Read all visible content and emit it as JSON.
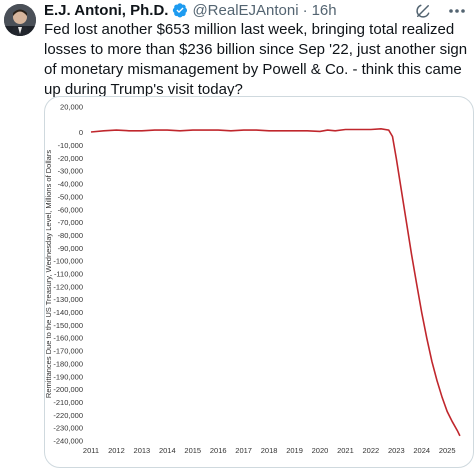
{
  "tweet": {
    "author_name": "E.J. Antoni, Ph.D.",
    "author_handle": "@RealEJAntoni",
    "separator": "·",
    "time": "16h",
    "text": "Fed lost another $653 million last week, bringing total realized losses to more than $236 billion since Sep '22, just another sign of monetary mismanagement by Powell & Co. - think this came up during Trump's visit today?",
    "icons": {
      "verified": "verified-badge-icon",
      "grok": "grok-icon",
      "more": "more-icon"
    },
    "colors": {
      "verified": "#1d9bf0",
      "text": "#0f1419",
      "muted": "#536471"
    }
  },
  "chart_data": {
    "type": "line",
    "title": "",
    "xlabel": "",
    "ylabel": "Remittances Due to the US Treasury, Wednesday Level, Millions of Dollars",
    "x_tick_labels": [
      "2011",
      "2012",
      "2013",
      "2014",
      "2015",
      "2016",
      "2017",
      "2018",
      "2019",
      "2020",
      "2021",
      "2022",
      "2023",
      "2024",
      "2025"
    ],
    "y_tick_labels": [
      "20,000",
      "0",
      "-10,000",
      "-20,000",
      "-30,000",
      "-40,000",
      "-50,000",
      "-60,000",
      "-70,000",
      "-80,000",
      "-90,000",
      "-100,000",
      "-110,000",
      "-120,000",
      "-130,000",
      "-140,000",
      "-150,000",
      "-160,000",
      "-170,000",
      "-180,000",
      "-190,000",
      "-200,000",
      "-210,000",
      "-220,000",
      "-230,000",
      "-240,000"
    ],
    "xlim": [
      2011,
      2025.7
    ],
    "ylim": [
      -240000,
      20000
    ],
    "grid": false,
    "line_color": "#c0272d",
    "series": [
      {
        "x": [
          2011.0,
          2011.5,
          2012.0,
          2012.5,
          2013.0,
          2013.5,
          2014.0,
          2014.5,
          2015.0,
          2015.5,
          2016.0,
          2016.5,
          2017.0,
          2017.5,
          2018.0,
          2018.5,
          2019.0,
          2019.5,
          2020.0,
          2020.3,
          2020.6,
          2021.0,
          2021.5,
          2022.0,
          2022.4,
          2022.7,
          2022.85,
          2023.0,
          2023.2,
          2023.4,
          2023.6,
          2023.8,
          2024.0,
          2024.2,
          2024.4,
          2024.6,
          2024.8,
          2025.0,
          2025.2,
          2025.4,
          2025.5
        ],
        "y": [
          500,
          1500,
          2000,
          1500,
          1500,
          2000,
          2000,
          1500,
          2000,
          2000,
          2000,
          1500,
          2000,
          2000,
          1500,
          1500,
          1500,
          1500,
          1000,
          2000,
          1500,
          2500,
          2500,
          2500,
          3000,
          2000,
          -3000,
          -20000,
          -45000,
          -70000,
          -95000,
          -118000,
          -140000,
          -160000,
          -178000,
          -193000,
          -206000,
          -217000,
          -225000,
          -232000,
          -236000
        ]
      }
    ]
  }
}
